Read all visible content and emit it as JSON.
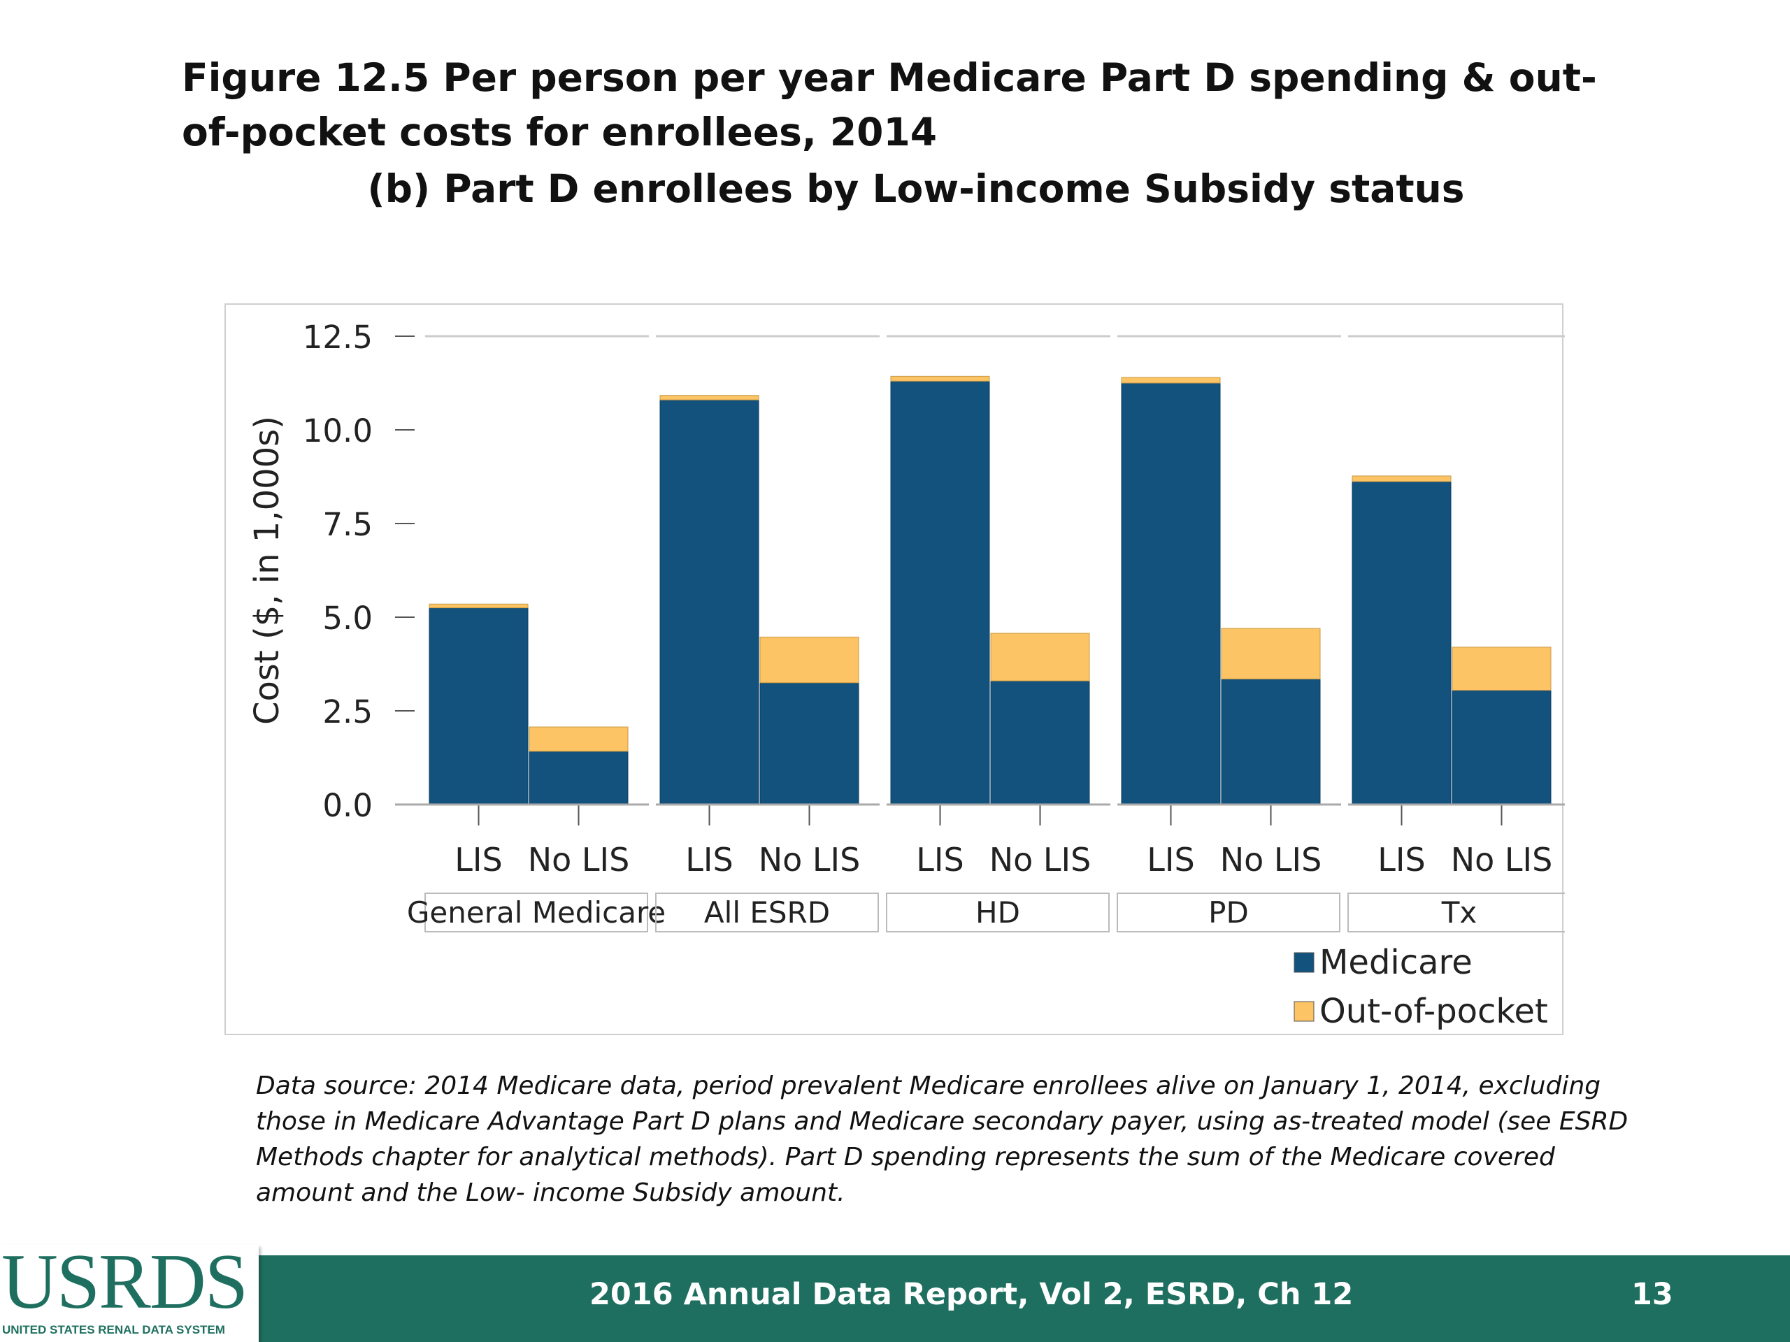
{
  "slide": {
    "title": "Figure 12.5 Per person per year Medicare Part D spending & out-of-pocket costs for enrollees, 2014",
    "subtitle": "(b) Part D enrollees by Low-income Subsidy status",
    "caption": "Data source: 2014 Medicare data, period prevalent Medicare enrollees alive on January 1, 2014, excluding those in Medicare Advantage Part D plans and Medicare secondary payer, using as-treated model (see ESRD Methods chapter for analytical methods). Part D spending represents the sum of the Medicare covered amount and the Low- income Subsidy amount.",
    "footer": "2016 Annual Data Report, Vol 2, ESRD, Ch 12",
    "page_number": "13",
    "logo_text": "USRDS",
    "logo_subtext": "UNITED STATES RENAL DATA SYSTEM"
  },
  "colors": {
    "medicare": "#12527d",
    "out_of_pocket": "#fcc464",
    "footer": "#1e6f5f"
  },
  "chart_data": {
    "type": "bar",
    "stacked": true,
    "ylabel": "Cost ($, in 1,000s)",
    "ylim": [
      0,
      12.5
    ],
    "yticks": [
      "0.0",
      "2.5",
      "5.0",
      "7.5",
      "10.0",
      "12.5"
    ],
    "groups": [
      "General Medicare",
      "All ESRD",
      "HD",
      "PD",
      "Tx"
    ],
    "subcategories": [
      "LIS",
      "No LIS"
    ],
    "grid": "horizontal",
    "legend_position": "bottom-right",
    "series": [
      {
        "name": "Medicare",
        "color": "#12527d",
        "values": [
          [
            5.25,
            1.42
          ],
          [
            10.8,
            3.25
          ],
          [
            11.3,
            3.3
          ],
          [
            11.25,
            3.35
          ],
          [
            8.62,
            3.05
          ]
        ]
      },
      {
        "name": "Out-of-pocket",
        "color": "#fcc464",
        "values": [
          [
            0.1,
            0.65
          ],
          [
            0.12,
            1.22
          ],
          [
            0.13,
            1.27
          ],
          [
            0.15,
            1.35
          ],
          [
            0.15,
            1.15
          ]
        ]
      }
    ]
  }
}
